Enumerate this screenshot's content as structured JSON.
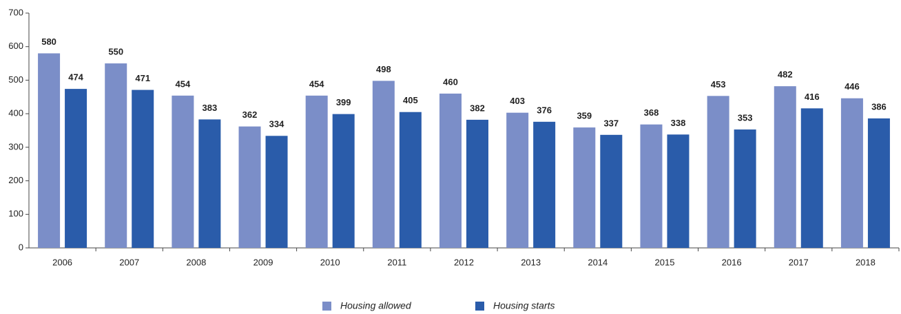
{
  "chart_data": {
    "type": "bar",
    "categories": [
      "2006",
      "2007",
      "2008",
      "2009",
      "2010",
      "2011",
      "2012",
      "2013",
      "2014",
      "2015",
      "2016",
      "2017",
      "2018"
    ],
    "series": [
      {
        "name": "Housing allowed",
        "color": "#7b8ec8",
        "values": [
          580,
          550,
          454,
          362,
          454,
          498,
          460,
          403,
          359,
          368,
          453,
          482,
          446
        ]
      },
      {
        "name": "Housing starts",
        "color": "#2a5caa",
        "values": [
          474,
          471,
          383,
          334,
          399,
          405,
          382,
          376,
          337,
          338,
          353,
          416,
          386
        ]
      }
    ],
    "ylim": [
      0,
      700
    ],
    "yticks": [
      0,
      100,
      200,
      300,
      400,
      500,
      600,
      700
    ],
    "grid": false,
    "legend": "bottom"
  }
}
